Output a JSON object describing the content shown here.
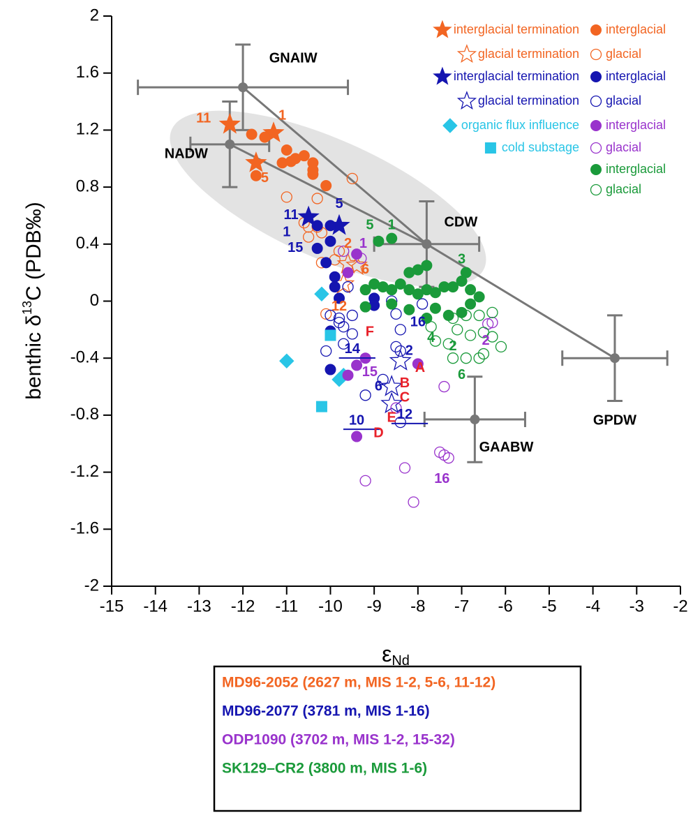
{
  "chart_data": {
    "type": "scatter",
    "ylabel_main": "benthic δ",
    "ylabel_sup": "13",
    "ylabel_rest": "C (PDB‰)",
    "xlabel_main": "ε",
    "xlabel_sub": "Nd",
    "xlim": [
      -15,
      -2
    ],
    "xticks": [
      -15,
      -14,
      -13,
      -12,
      -11,
      -10,
      -9,
      -8,
      -7,
      -6,
      -5,
      -4,
      -3,
      -2
    ],
    "ylim": [
      -2,
      2
    ],
    "yticks": [
      -2,
      -1.6,
      -1.2,
      -0.8,
      -0.4,
      0,
      0.4,
      0.8,
      1.2,
      1.6,
      2
    ],
    "sites": [
      {
        "name": "MD96-2052 (2627 m, MIS 1-2, 5-6, 11-12)",
        "color": "#f26522"
      },
      {
        "name": "MD96-2077 (3781 m, MIS 1-16)",
        "color": "#1515b0"
      },
      {
        "name": "ODP1090 (3702 m, MIS 1-2, 15-32)",
        "color": "#9933cc"
      },
      {
        "name": "SK129–CR2 (3800 m, MIS 1-6)",
        "color": "#1a9a3a"
      }
    ],
    "series": [
      {
        "name": "interglacial termination",
        "color": "#f26522",
        "marker": "star",
        "filled": true,
        "x": [
          -12.3,
          -11.3,
          -11.7
        ],
        "y": [
          1.24,
          1.18,
          0.97
        ]
      },
      {
        "name": "interglacial",
        "color": "#f26522",
        "marker": "circle",
        "filled": true,
        "x": [
          -11.8,
          -11.5,
          -11.7,
          -11,
          -10.8,
          -10.6,
          -11.1,
          -10.9,
          -10.4,
          -10.4,
          -10.4,
          -10.1
        ],
        "y": [
          1.17,
          1.15,
          0.88,
          1.06,
          1.0,
          1.02,
          0.97,
          0.98,
          0.97,
          0.92,
          0.89,
          0.81
        ]
      },
      {
        "name": "glacial termination",
        "color": "#f26522",
        "marker": "star",
        "filled": false,
        "x": [
          -9.6,
          -9.4,
          -9.7
        ],
        "y": [
          0.26,
          0.25,
          0.12
        ]
      },
      {
        "name": "glacial",
        "color": "#f26522",
        "marker": "circle",
        "filled": false,
        "x": [
          -11,
          -10.3,
          -9.5,
          -10.6,
          -10.5,
          -10.3,
          -10.2,
          -10.5,
          -9.8,
          -9.9,
          -10.2,
          -10.1
        ],
        "y": [
          0.73,
          0.72,
          0.86,
          0.55,
          0.52,
          0.52,
          0.48,
          0.45,
          0.35,
          0.29,
          0.27,
          -0.09
        ]
      },
      {
        "name": "interglacial termination",
        "color": "#1515b0",
        "marker": "star",
        "filled": true,
        "x": [
          -10.5,
          -9.8
        ],
        "y": [
          0.59,
          0.53
        ]
      },
      {
        "name": "interglacial",
        "color": "#1515b0",
        "marker": "circle",
        "filled": true,
        "x": [
          -10.3,
          -10.0,
          -10.3,
          -10.1,
          -9.9,
          -9.9,
          -9.8,
          -9,
          -9,
          -10,
          -10,
          -10
        ],
        "y": [
          0.53,
          0.53,
          0.37,
          0.27,
          0.17,
          0.1,
          0.02,
          0.02,
          -0.03,
          -0.21,
          -0.48,
          0.42
        ]
      },
      {
        "name": "glacial termination",
        "color": "#1515b0",
        "marker": "star",
        "filled": false,
        "x": [
          -8.4,
          -8.6,
          -8.6
        ],
        "y": [
          -0.42,
          -0.6,
          -0.72
        ]
      },
      {
        "name": "glacial",
        "color": "#1515b0",
        "marker": "circle",
        "filled": false,
        "x": [
          -10.0,
          -9.8,
          -9.7,
          -9.5,
          -9.7,
          -10.1,
          -9.8,
          -9.5,
          -9.2,
          -8.8,
          -8.5,
          -8.4,
          -8.4,
          -8.5,
          -8.6,
          -7.9,
          -9.6,
          -8.4
        ],
        "y": [
          -0.1,
          -0.12,
          -0.18,
          -0.23,
          -0.3,
          -0.35,
          -0.15,
          -0.1,
          -0.66,
          -0.55,
          -0.32,
          -0.35,
          -0.2,
          -0.09,
          0.0,
          -0.02,
          0.1,
          -0.85
        ]
      },
      {
        "name": "organic flux influence",
        "color": "#29c5e6",
        "marker": "diamond",
        "filled": true,
        "x": [
          -10.2,
          -11,
          -9.8,
          -9.7
        ],
        "y": [
          0.05,
          -0.42,
          -0.55,
          -0.52
        ]
      },
      {
        "name": "cold substage",
        "color": "#29c5e6",
        "marker": "square",
        "filled": true,
        "x": [
          -10.0,
          -10.2
        ],
        "y": [
          -0.24,
          -0.74
        ]
      },
      {
        "name": "interglacial",
        "color": "#9933cc",
        "marker": "circle",
        "filled": true,
        "x": [
          -9.4,
          -9.6,
          -9.4,
          -9.2,
          -9.6,
          -8,
          -9.4
        ],
        "y": [
          0.33,
          0.2,
          -0.45,
          -0.4,
          -0.52,
          -0.44,
          -0.95
        ]
      },
      {
        "name": "glacial",
        "color": "#9933cc",
        "marker": "circle",
        "filled": false,
        "x": [
          -9.7,
          -9.3,
          -7.4,
          -7.5,
          -7.4,
          -7.3,
          -8.3,
          -9.2,
          -8.1,
          -6.4,
          -6.3,
          -8.5
        ],
        "y": [
          0.35,
          0.3,
          -0.6,
          -1.06,
          -1.08,
          -1.1,
          -1.17,
          -1.26,
          -1.41,
          -0.16,
          -0.15,
          -0.75
        ]
      },
      {
        "name": "interglacial",
        "color": "#1a9a3a",
        "marker": "circle",
        "filled": true,
        "x": [
          -8.9,
          -8.6,
          -8.2,
          -8.0,
          -7.8,
          -9.2,
          -9.0,
          -8.8,
          -8.6,
          -8.4,
          -8.2,
          -8.0,
          -9.2,
          -8.6,
          -8.2,
          -7.8,
          -7.6,
          -7.4,
          -7.2,
          -7.0,
          -6.8,
          -6.9,
          -7.6,
          -7.3,
          -7.0,
          -6.6,
          -6.8,
          -7.8
        ],
        "y": [
          0.42,
          0.44,
          0.2,
          0.22,
          0.25,
          0.08,
          0.12,
          0.1,
          0.08,
          0.12,
          0.08,
          0.05,
          -0.04,
          -0.02,
          -0.06,
          0.08,
          0.06,
          0.1,
          0.1,
          0.14,
          0.08,
          0.2,
          -0.05,
          -0.1,
          -0.08,
          0.03,
          -0.02,
          -0.12
        ]
      },
      {
        "name": "glacial",
        "color": "#1a9a3a",
        "marker": "circle",
        "filled": false,
        "x": [
          -7.2,
          -7.7,
          -7.6,
          -7.3,
          -7.2,
          -6.9,
          -6.6,
          -6.5,
          -6.6,
          -6.3,
          -6.1,
          -6.5,
          -6.9,
          -6.8,
          -7.1,
          -6.3
        ],
        "y": [
          -0.12,
          -0.18,
          -0.28,
          -0.3,
          -0.4,
          -0.4,
          -0.4,
          -0.22,
          -0.1,
          -0.25,
          -0.32,
          -0.37,
          -0.1,
          -0.24,
          -0.2,
          -0.08
        ]
      }
    ],
    "endmembers": [
      {
        "name": "GNAIW",
        "x": -12,
        "y": 1.5,
        "xerr": 2.4,
        "yerr": 0.3
      },
      {
        "name": "NADW",
        "x": -12.3,
        "y": 1.1,
        "xerr": 0.9,
        "yerr": 0.3
      },
      {
        "name": "CDW",
        "x": -7.8,
        "y": 0.4,
        "xerr": 1.2,
        "yerr": 0.3
      },
      {
        "name": "GPDW",
        "x": -3.5,
        "y": -0.4,
        "xerr": 1.2,
        "yerr": 0.3
      },
      {
        "name": "GAABW",
        "x": -6.7,
        "y": -0.83,
        "xerr": 1.15,
        "yerr": 0.3
      }
    ],
    "annotations": [
      {
        "text": "11",
        "color": "#f26522"
      },
      {
        "text": "1",
        "color": "#f26522"
      },
      {
        "text": "5",
        "color": "#f26522"
      },
      {
        "text": "2",
        "color": "#f26522"
      },
      {
        "text": "6",
        "color": "#f26522"
      },
      {
        "text": "12",
        "color": "#f26522"
      },
      {
        "text": "5",
        "color": "#1515b0"
      },
      {
        "text": "11",
        "color": "#1515b0"
      },
      {
        "text": "1",
        "color": "#1515b0"
      },
      {
        "text": "15",
        "color": "#1515b0"
      },
      {
        "text": "14",
        "color": "#1515b0"
      },
      {
        "text": "2",
        "color": "#1515b0"
      },
      {
        "text": "16",
        "color": "#1515b0"
      },
      {
        "text": "6",
        "color": "#1515b0"
      },
      {
        "text": "12",
        "color": "#1515b0"
      },
      {
        "text": "10",
        "color": "#1515b0"
      },
      {
        "text": "1",
        "color": "#9933cc"
      },
      {
        "text": "15",
        "color": "#9933cc"
      },
      {
        "text": "16",
        "color": "#9933cc"
      },
      {
        "text": "2",
        "color": "#9933cc"
      },
      {
        "text": "5",
        "color": "#1a9a3a"
      },
      {
        "text": "1",
        "color": "#1a9a3a"
      },
      {
        "text": "3",
        "color": "#1a9a3a"
      },
      {
        "text": "4",
        "color": "#1a9a3a"
      },
      {
        "text": "2",
        "color": "#1a9a3a"
      },
      {
        "text": "6",
        "color": "#1a9a3a"
      },
      {
        "text": "F",
        "color": "#e8212a"
      },
      {
        "text": "A",
        "color": "#e8212a"
      },
      {
        "text": "B",
        "color": "#e8212a"
      },
      {
        "text": "C",
        "color": "#e8212a"
      },
      {
        "text": "E",
        "color": "#e8212a"
      },
      {
        "text": "D",
        "color": "#e8212a"
      }
    ]
  }
}
